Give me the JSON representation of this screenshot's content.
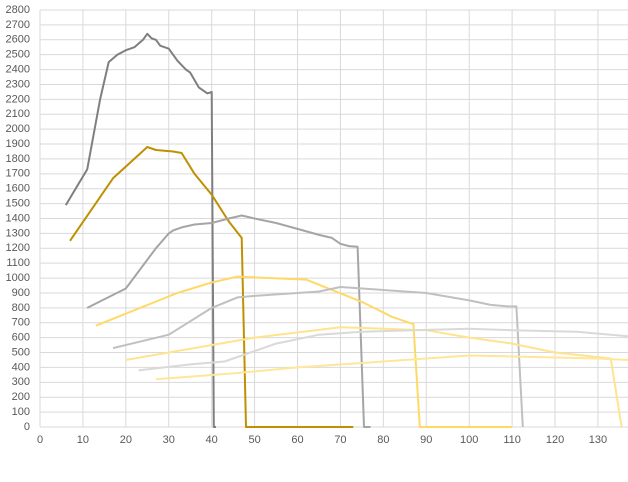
{
  "chart_data": {
    "type": "line",
    "xlim": [
      0,
      137
    ],
    "ylim": [
      0,
      2800
    ],
    "xticks": [
      0,
      10,
      20,
      30,
      40,
      50,
      60,
      70,
      80,
      90,
      100,
      110,
      120,
      130
    ],
    "yticks": [
      0,
      100,
      200,
      300,
      400,
      500,
      600,
      700,
      800,
      900,
      1000,
      1100,
      1200,
      1300,
      1400,
      1500,
      1600,
      1700,
      1800,
      1900,
      2000,
      2100,
      2200,
      2300,
      2400,
      2500,
      2600,
      2700,
      2800
    ],
    "grid": true,
    "series": [
      {
        "color": "#7f7f7f",
        "x": [
          6,
          11,
          14,
          16,
          18,
          20,
          22,
          24,
          25,
          26,
          27,
          28,
          30,
          32,
          34,
          35,
          37,
          39,
          40,
          40.5,
          41
        ],
        "values": [
          1490,
          1730,
          2200,
          2450,
          2500,
          2530,
          2550,
          2600,
          2640,
          2610,
          2600,
          2560,
          2540,
          2460,
          2400,
          2380,
          2280,
          2240,
          2250,
          0,
          0
        ]
      },
      {
        "color": "#bf9000",
        "x": [
          7,
          17,
          25,
          27,
          31,
          33,
          36,
          40,
          44,
          47,
          48,
          73
        ],
        "values": [
          1250,
          1670,
          1880,
          1860,
          1850,
          1840,
          1700,
          1560,
          1380,
          1270,
          0,
          0
        ]
      },
      {
        "color": "#a5a5a5",
        "x": [
          11,
          20,
          27,
          30,
          31,
          33,
          36,
          40,
          44,
          47,
          50,
          55,
          60,
          65,
          68,
          70,
          72,
          74,
          75.5,
          77
        ],
        "values": [
          800,
          930,
          1200,
          1300,
          1320,
          1340,
          1360,
          1370,
          1400,
          1420,
          1400,
          1370,
          1330,
          1290,
          1270,
          1230,
          1215,
          1210,
          0,
          0
        ]
      },
      {
        "color": "#ffd966",
        "x": [
          13,
          32,
          40,
          46,
          62,
          75,
          82,
          87,
          88.5,
          110
        ],
        "values": [
          680,
          900,
          970,
          1010,
          990,
          840,
          740,
          690,
          0,
          0
        ]
      },
      {
        "color": "#c0c0c0",
        "x": [
          17,
          30,
          40,
          46,
          50,
          60,
          65,
          70,
          80,
          90,
          100,
          105,
          109,
          111,
          112.5
        ],
        "values": [
          530,
          620,
          800,
          870,
          880,
          900,
          910,
          940,
          920,
          900,
          850,
          820,
          810,
          810,
          0
        ]
      },
      {
        "color": "#ffe38f",
        "x": [
          20,
          50,
          70,
          80,
          90,
          100,
          110,
          120,
          133,
          135.5
        ],
        "values": [
          450,
          600,
          670,
          660,
          650,
          600,
          560,
          500,
          460,
          0
        ]
      },
      {
        "color": "#d9d9d9",
        "x": [
          23,
          35,
          43,
          55,
          65,
          75,
          100,
          110,
          125,
          137
        ],
        "values": [
          380,
          420,
          440,
          560,
          620,
          640,
          660,
          650,
          640,
          610
        ]
      },
      {
        "color": "#ffe699",
        "x": [
          27,
          45,
          60,
          80,
          100,
          115,
          130,
          137
        ],
        "values": [
          320,
          360,
          400,
          440,
          480,
          470,
          460,
          450
        ]
      }
    ]
  }
}
